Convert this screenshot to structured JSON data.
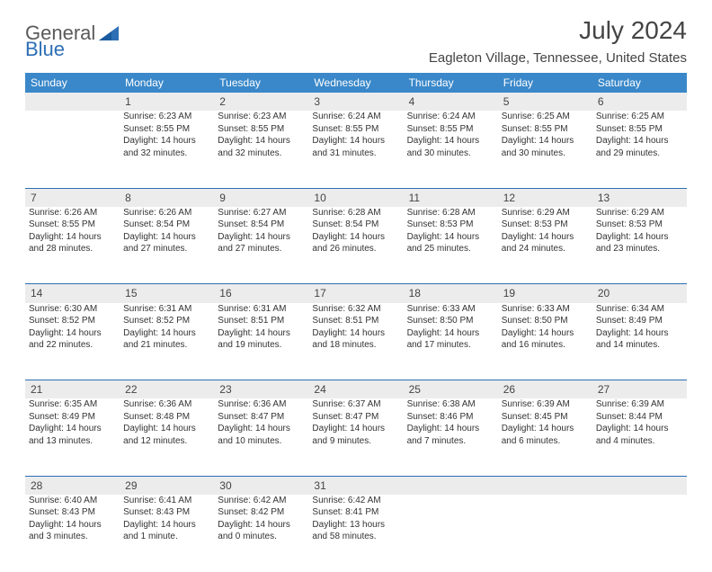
{
  "brand": {
    "general": "General",
    "blue": "Blue"
  },
  "header": {
    "title": "July 2024",
    "location": "Eagleton Village, Tennessee, United States"
  },
  "colors": {
    "header_bg": "#3a88c9",
    "header_text": "#ffffff",
    "daynum_bg": "#ececec",
    "border": "#2d6fb5",
    "text": "#333333",
    "brand_gray": "#5a5a5a",
    "brand_blue": "#2d6fb5"
  },
  "weekdays": [
    "Sunday",
    "Monday",
    "Tuesday",
    "Wednesday",
    "Thursday",
    "Friday",
    "Saturday"
  ],
  "weeks": [
    {
      "nums": [
        "",
        "1",
        "2",
        "3",
        "4",
        "5",
        "6"
      ],
      "cells": [
        {
          "sunrise": "",
          "sunset": "",
          "daylight": ""
        },
        {
          "sunrise": "Sunrise: 6:23 AM",
          "sunset": "Sunset: 8:55 PM",
          "daylight": "Daylight: 14 hours and 32 minutes."
        },
        {
          "sunrise": "Sunrise: 6:23 AM",
          "sunset": "Sunset: 8:55 PM",
          "daylight": "Daylight: 14 hours and 32 minutes."
        },
        {
          "sunrise": "Sunrise: 6:24 AM",
          "sunset": "Sunset: 8:55 PM",
          "daylight": "Daylight: 14 hours and 31 minutes."
        },
        {
          "sunrise": "Sunrise: 6:24 AM",
          "sunset": "Sunset: 8:55 PM",
          "daylight": "Daylight: 14 hours and 30 minutes."
        },
        {
          "sunrise": "Sunrise: 6:25 AM",
          "sunset": "Sunset: 8:55 PM",
          "daylight": "Daylight: 14 hours and 30 minutes."
        },
        {
          "sunrise": "Sunrise: 6:25 AM",
          "sunset": "Sunset: 8:55 PM",
          "daylight": "Daylight: 14 hours and 29 minutes."
        }
      ]
    },
    {
      "nums": [
        "7",
        "8",
        "9",
        "10",
        "11",
        "12",
        "13"
      ],
      "cells": [
        {
          "sunrise": "Sunrise: 6:26 AM",
          "sunset": "Sunset: 8:55 PM",
          "daylight": "Daylight: 14 hours and 28 minutes."
        },
        {
          "sunrise": "Sunrise: 6:26 AM",
          "sunset": "Sunset: 8:54 PM",
          "daylight": "Daylight: 14 hours and 27 minutes."
        },
        {
          "sunrise": "Sunrise: 6:27 AM",
          "sunset": "Sunset: 8:54 PM",
          "daylight": "Daylight: 14 hours and 27 minutes."
        },
        {
          "sunrise": "Sunrise: 6:28 AM",
          "sunset": "Sunset: 8:54 PM",
          "daylight": "Daylight: 14 hours and 26 minutes."
        },
        {
          "sunrise": "Sunrise: 6:28 AM",
          "sunset": "Sunset: 8:53 PM",
          "daylight": "Daylight: 14 hours and 25 minutes."
        },
        {
          "sunrise": "Sunrise: 6:29 AM",
          "sunset": "Sunset: 8:53 PM",
          "daylight": "Daylight: 14 hours and 24 minutes."
        },
        {
          "sunrise": "Sunrise: 6:29 AM",
          "sunset": "Sunset: 8:53 PM",
          "daylight": "Daylight: 14 hours and 23 minutes."
        }
      ]
    },
    {
      "nums": [
        "14",
        "15",
        "16",
        "17",
        "18",
        "19",
        "20"
      ],
      "cells": [
        {
          "sunrise": "Sunrise: 6:30 AM",
          "sunset": "Sunset: 8:52 PM",
          "daylight": "Daylight: 14 hours and 22 minutes."
        },
        {
          "sunrise": "Sunrise: 6:31 AM",
          "sunset": "Sunset: 8:52 PM",
          "daylight": "Daylight: 14 hours and 21 minutes."
        },
        {
          "sunrise": "Sunrise: 6:31 AM",
          "sunset": "Sunset: 8:51 PM",
          "daylight": "Daylight: 14 hours and 19 minutes."
        },
        {
          "sunrise": "Sunrise: 6:32 AM",
          "sunset": "Sunset: 8:51 PM",
          "daylight": "Daylight: 14 hours and 18 minutes."
        },
        {
          "sunrise": "Sunrise: 6:33 AM",
          "sunset": "Sunset: 8:50 PM",
          "daylight": "Daylight: 14 hours and 17 minutes."
        },
        {
          "sunrise": "Sunrise: 6:33 AM",
          "sunset": "Sunset: 8:50 PM",
          "daylight": "Daylight: 14 hours and 16 minutes."
        },
        {
          "sunrise": "Sunrise: 6:34 AM",
          "sunset": "Sunset: 8:49 PM",
          "daylight": "Daylight: 14 hours and 14 minutes."
        }
      ]
    },
    {
      "nums": [
        "21",
        "22",
        "23",
        "24",
        "25",
        "26",
        "27"
      ],
      "cells": [
        {
          "sunrise": "Sunrise: 6:35 AM",
          "sunset": "Sunset: 8:49 PM",
          "daylight": "Daylight: 14 hours and 13 minutes."
        },
        {
          "sunrise": "Sunrise: 6:36 AM",
          "sunset": "Sunset: 8:48 PM",
          "daylight": "Daylight: 14 hours and 12 minutes."
        },
        {
          "sunrise": "Sunrise: 6:36 AM",
          "sunset": "Sunset: 8:47 PM",
          "daylight": "Daylight: 14 hours and 10 minutes."
        },
        {
          "sunrise": "Sunrise: 6:37 AM",
          "sunset": "Sunset: 8:47 PM",
          "daylight": "Daylight: 14 hours and 9 minutes."
        },
        {
          "sunrise": "Sunrise: 6:38 AM",
          "sunset": "Sunset: 8:46 PM",
          "daylight": "Daylight: 14 hours and 7 minutes."
        },
        {
          "sunrise": "Sunrise: 6:39 AM",
          "sunset": "Sunset: 8:45 PM",
          "daylight": "Daylight: 14 hours and 6 minutes."
        },
        {
          "sunrise": "Sunrise: 6:39 AM",
          "sunset": "Sunset: 8:44 PM",
          "daylight": "Daylight: 14 hours and 4 minutes."
        }
      ]
    },
    {
      "nums": [
        "28",
        "29",
        "30",
        "31",
        "",
        "",
        ""
      ],
      "cells": [
        {
          "sunrise": "Sunrise: 6:40 AM",
          "sunset": "Sunset: 8:43 PM",
          "daylight": "Daylight: 14 hours and 3 minutes."
        },
        {
          "sunrise": "Sunrise: 6:41 AM",
          "sunset": "Sunset: 8:43 PM",
          "daylight": "Daylight: 14 hours and 1 minute."
        },
        {
          "sunrise": "Sunrise: 6:42 AM",
          "sunset": "Sunset: 8:42 PM",
          "daylight": "Daylight: 14 hours and 0 minutes."
        },
        {
          "sunrise": "Sunrise: 6:42 AM",
          "sunset": "Sunset: 8:41 PM",
          "daylight": "Daylight: 13 hours and 58 minutes."
        },
        {
          "sunrise": "",
          "sunset": "",
          "daylight": ""
        },
        {
          "sunrise": "",
          "sunset": "",
          "daylight": ""
        },
        {
          "sunrise": "",
          "sunset": "",
          "daylight": ""
        }
      ]
    }
  ]
}
